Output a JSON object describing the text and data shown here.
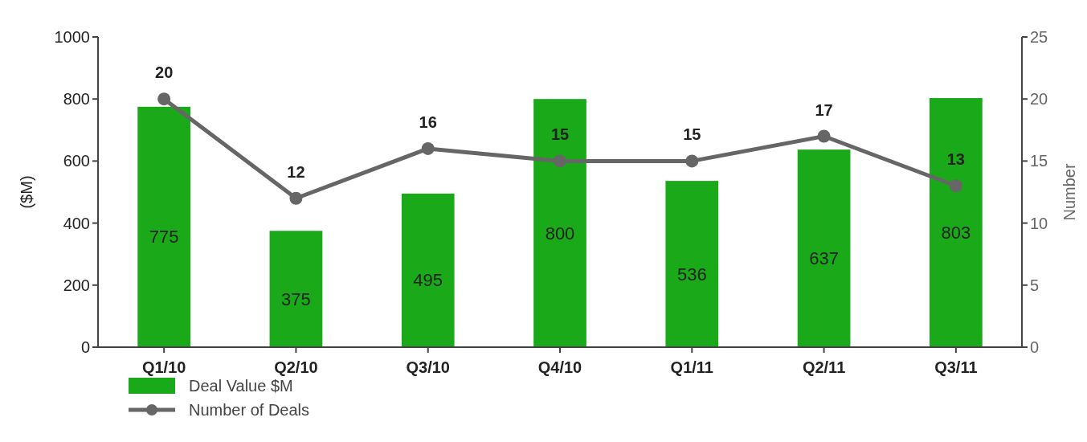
{
  "chart_data": {
    "type": "bar",
    "categories": [
      "Q1/10",
      "Q2/10",
      "Q3/10",
      "Q4/10",
      "Q1/11",
      "Q2/11",
      "Q3/11"
    ],
    "series": [
      {
        "name": "Deal Value $M",
        "color": "#19a919",
        "values": [
          775,
          375,
          495,
          800,
          536,
          637,
          803
        ]
      },
      {
        "name": "Number of Deals",
        "type": "line",
        "axis": "y2",
        "color": "#666666",
        "values": [
          20,
          12,
          16,
          15,
          15,
          17,
          13
        ]
      }
    ],
    "ylabel": "($M)",
    "y2label": "Number",
    "ylim": [
      0,
      1000
    ],
    "yticks": [
      0,
      200,
      400,
      600,
      800,
      1000
    ],
    "y2lim": [
      0,
      25
    ],
    "y2ticks": [
      0,
      5,
      10,
      15,
      20,
      25
    ],
    "data_labels": true,
    "legend": "bottom left",
    "marker": "circle",
    "line_style": "solid",
    "grid": false
  }
}
